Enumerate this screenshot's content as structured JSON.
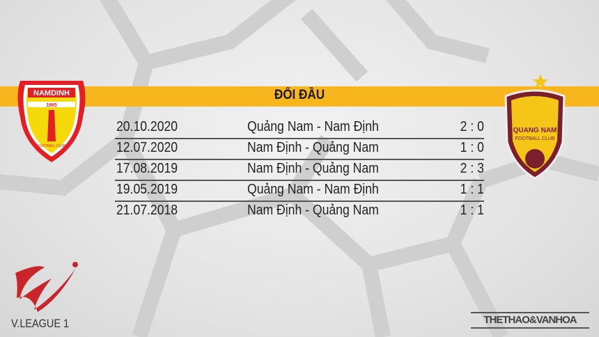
{
  "header": {
    "title": "ĐỐI ĐẦU",
    "accent": "#f7b51e"
  },
  "teams": {
    "home_logo_text": "NAMDINH",
    "home_logo_year": "1965",
    "home_logo_sub": "FOOTBALL CLUB",
    "away_logo_text": "QUANG NAM",
    "away_logo_sub": "FOOTBALL CLUB"
  },
  "matches": [
    {
      "date": "20.10.2020",
      "fixture": "Quảng Nam - Nam Định",
      "score": "2 : 0"
    },
    {
      "date": "12.07.2020",
      "fixture": "Nam Định - Quảng Nam",
      "score": "1 : 0"
    },
    {
      "date": "17.08.2019",
      "fixture": "Nam Định - Quảng Nam",
      "score": "2 : 3"
    },
    {
      "date": "19.05.2019",
      "fixture": "Quảng Nam - Nam Định",
      "score": "1 : 1"
    },
    {
      "date": "21.07.2018",
      "fixture": "Nam Định - Quảng Nam",
      "score": "1 : 1"
    }
  ],
  "footer": {
    "league": "V.LEAGUE 1",
    "brand": "THETHAO&VANHOA"
  }
}
